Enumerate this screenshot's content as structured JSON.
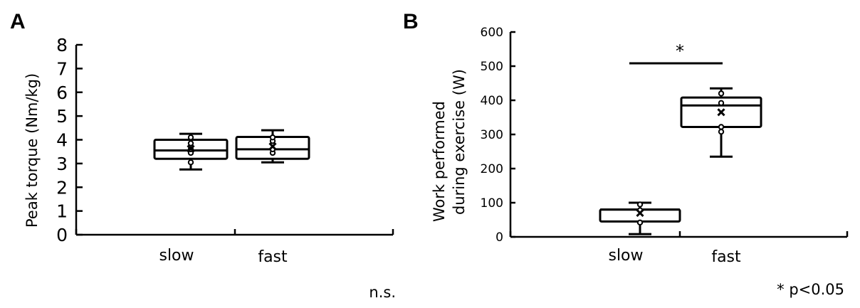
{
  "chart_data": [
    {
      "type": "box",
      "panel": "A",
      "ylabel": "Peak torque (Nm/kg)",
      "ylim": [
        0,
        8
      ],
      "yticks": [
        "0",
        "1",
        "2",
        "3",
        "4",
        "5",
        "6",
        "7",
        "8"
      ],
      "categories": [
        "slow",
        "fast"
      ],
      "boxes": [
        {
          "name": "slow",
          "min": 2.75,
          "q1": 3.2,
          "median": 3.55,
          "q3": 4.0,
          "max": 4.25,
          "mean": 3.62,
          "points": [
            3.05,
            3.45,
            3.6,
            3.85,
            4.1
          ]
        },
        {
          "name": "fast",
          "min": 3.05,
          "q1": 3.2,
          "median": 3.6,
          "q3": 4.12,
          "max": 4.4,
          "mean": 3.72,
          "points": [
            3.45,
            3.6,
            3.95,
            4.1
          ]
        }
      ],
      "annotation": "n.s."
    },
    {
      "type": "box",
      "panel": "B",
      "ylabel": "Work performed during exercise (W)",
      "ylabel_lines": [
        "Work performed",
        "during exercise (W)"
      ],
      "ylim": [
        0,
        600
      ],
      "yticks": [
        "0",
        "100",
        "200",
        "300",
        "400",
        "500",
        "600"
      ],
      "categories": [
        "slow",
        "fast"
      ],
      "boxes": [
        {
          "name": "slow",
          "min": 8,
          "q1": 45,
          "median": 80,
          "q3": 80,
          "max": 100,
          "mean": 70,
          "points": [
            42,
            78,
            95
          ]
        },
        {
          "name": "fast",
          "min": 235,
          "q1": 322,
          "median": 385,
          "q3": 408,
          "max": 435,
          "mean": 365,
          "points": [
            308,
            322,
            392,
            420
          ]
        }
      ],
      "significance": "*",
      "annotation": "* p<0.05"
    }
  ]
}
